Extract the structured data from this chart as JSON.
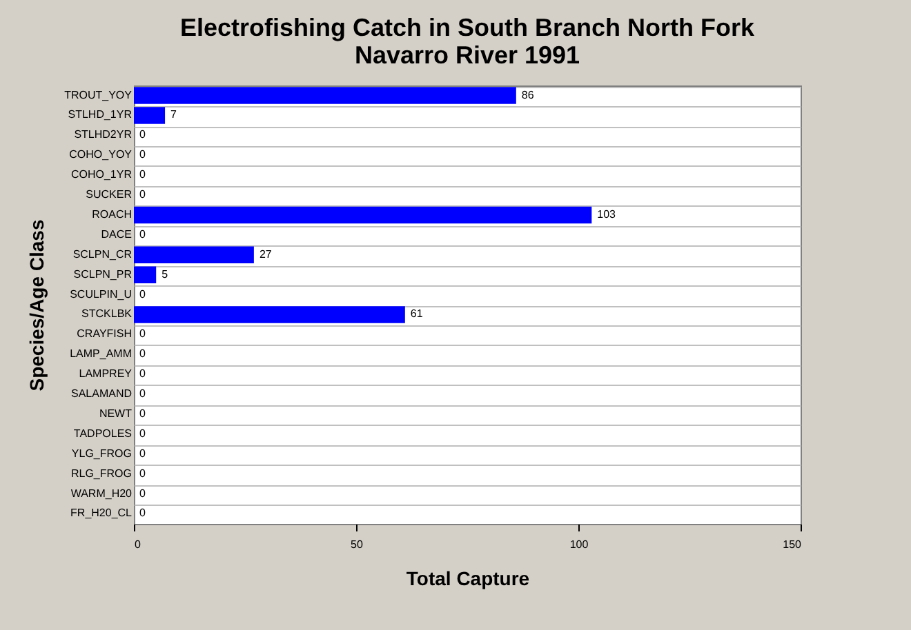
{
  "chart_data": {
    "type": "bar",
    "orientation": "horizontal",
    "title": "Electrofishing Catch in South Branch North Fork\nNavarro River 1991",
    "xlabel": "Total Capture",
    "ylabel": "Species/Age Class",
    "categories": [
      "TROUT_YOY",
      "STLHD_1YR",
      "STLHD2YR",
      "COHO_YOY",
      "COHO_1YR",
      "SUCKER",
      "ROACH",
      "DACE",
      "SCLPN_CR",
      "SCLPN_PR",
      "SCULPIN_U",
      "STCKLBK",
      "CRAYFISH",
      "LAMP_AMM",
      "LAMPREY",
      "SALAMAND",
      "NEWT",
      "TADPOLES",
      "YLG_FROG",
      "RLG_FROG",
      "WARM_H20",
      "FR_H20_CL"
    ],
    "values": [
      86,
      7,
      0,
      0,
      0,
      0,
      103,
      0,
      27,
      5,
      0,
      61,
      0,
      0,
      0,
      0,
      0,
      0,
      0,
      0,
      0,
      0
    ],
    "color": "#0000ff",
    "xlim": [
      0,
      150
    ],
    "xticks": [
      0,
      50,
      100,
      150
    ],
    "grid": "y",
    "data_labels": true
  }
}
